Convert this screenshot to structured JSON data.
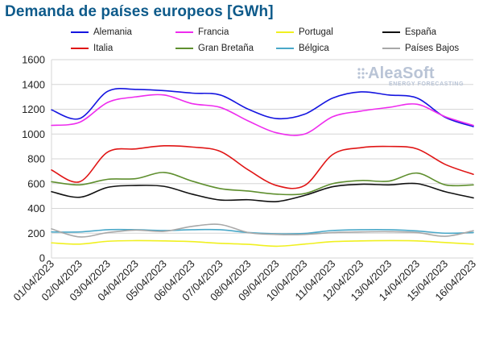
{
  "title": "Demanda de países europeos [GWh]",
  "logo": {
    "name": "AleaSoft",
    "tagline": "ENERGY FORECASTING"
  },
  "legend": [
    {
      "name": "Alemania",
      "color": "#1515e0"
    },
    {
      "name": "Francia",
      "color": "#ee2cee"
    },
    {
      "name": "Portugal",
      "color": "#f0f020"
    },
    {
      "name": "España",
      "color": "#111111"
    },
    {
      "name": "Italia",
      "color": "#e01515"
    },
    {
      "name": "Gran Bretaña",
      "color": "#5f8f2f"
    },
    {
      "name": "Bélgica",
      "color": "#4aa8c8"
    },
    {
      "name": "Países Bajos",
      "color": "#a8a8a8"
    }
  ],
  "chart_data": {
    "type": "line",
    "title": "Demanda de países europeos [GWh]",
    "xlabel": "",
    "ylabel": "",
    "ylim": [
      0,
      1600
    ],
    "yticks": [
      0,
      200,
      400,
      600,
      800,
      1000,
      1200,
      1400,
      1600
    ],
    "grid": true,
    "legend_position": "top",
    "x": [
      "01/04/2023",
      "02/04/2023",
      "03/04/2023",
      "04/04/2023",
      "05/04/2023",
      "06/04/2023",
      "07/04/2023",
      "08/04/2023",
      "09/04/2023",
      "10/04/2023",
      "11/04/2023",
      "12/04/2023",
      "13/04/2023",
      "14/04/2023",
      "15/04/2023",
      "16/04/2023"
    ],
    "series": [
      {
        "name": "Alemania",
        "color": "#1515e0",
        "values": [
          1195,
          1125,
          1345,
          1360,
          1350,
          1330,
          1315,
          1200,
          1125,
          1160,
          1290,
          1340,
          1315,
          1290,
          1135,
          1060
        ]
      },
      {
        "name": "Francia",
        "color": "#ee2cee",
        "values": [
          1070,
          1095,
          1255,
          1300,
          1315,
          1245,
          1215,
          1105,
          1010,
          1000,
          1140,
          1185,
          1215,
          1240,
          1140,
          1070
        ]
      },
      {
        "name": "Portugal",
        "color": "#f0f020",
        "values": [
          122,
          112,
          135,
          140,
          138,
          132,
          118,
          110,
          95,
          112,
          132,
          138,
          140,
          138,
          125,
          112
        ]
      },
      {
        "name": "España",
        "color": "#111111",
        "values": [
          535,
          490,
          570,
          585,
          578,
          515,
          468,
          470,
          455,
          505,
          575,
          595,
          590,
          600,
          535,
          485
        ]
      },
      {
        "name": "Italia",
        "color": "#e01515",
        "values": [
          710,
          615,
          855,
          880,
          905,
          895,
          860,
          710,
          585,
          585,
          835,
          890,
          900,
          880,
          755,
          675
        ]
      },
      {
        "name": "Gran Bretaña",
        "color": "#5f8f2f",
        "values": [
          615,
          590,
          635,
          640,
          690,
          620,
          560,
          540,
          515,
          520,
          600,
          625,
          620,
          685,
          590,
          590
        ]
      },
      {
        "name": "Bélgica",
        "color": "#4aa8c8",
        "values": [
          210,
          210,
          228,
          228,
          222,
          228,
          228,
          205,
          195,
          198,
          222,
          228,
          228,
          218,
          200,
          205
        ]
      },
      {
        "name": "Países Bajos",
        "color": "#a8a8a8",
        "values": [
          235,
          170,
          205,
          225,
          215,
          255,
          270,
          205,
          190,
          190,
          205,
          210,
          212,
          205,
          175,
          220
        ]
      }
    ]
  }
}
